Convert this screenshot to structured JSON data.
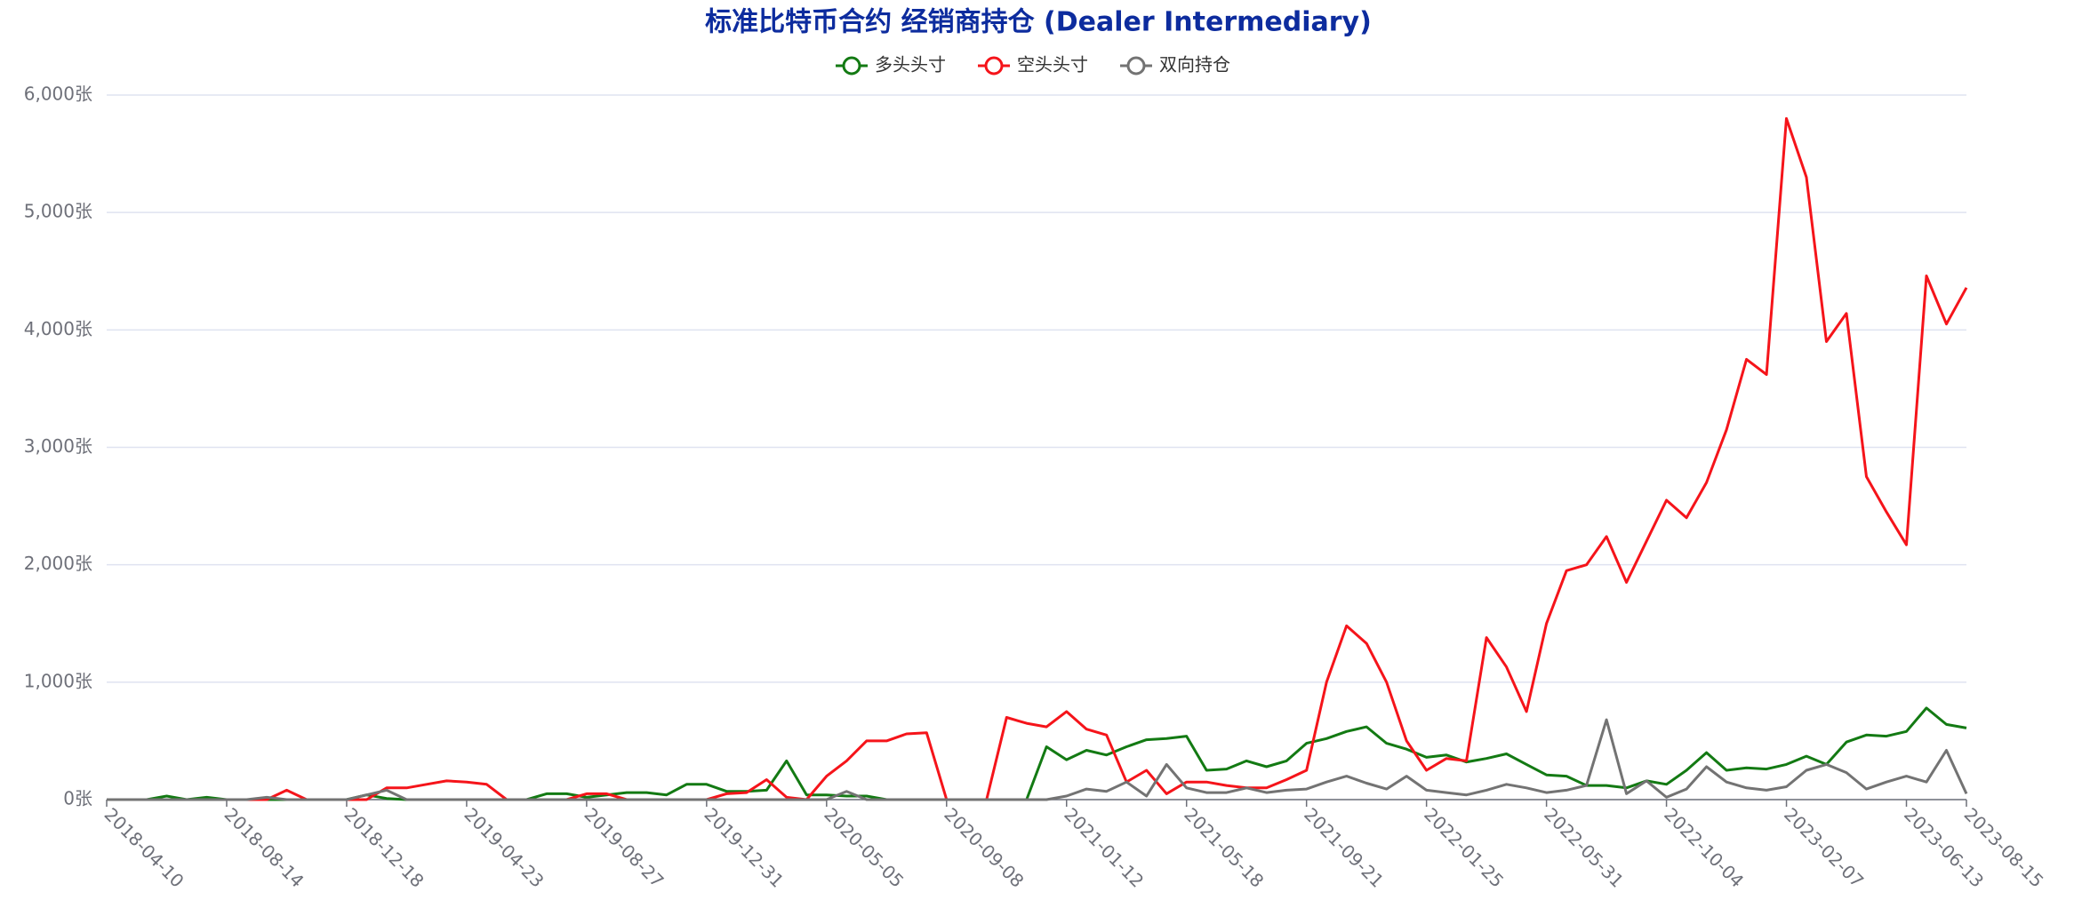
{
  "chart_data": {
    "type": "line",
    "title": "标准比特币合约 经销商持仓 (Dealer Intermediary)",
    "categories": [
      "2018-04-10",
      null,
      null,
      null,
      null,
      null,
      "2018-08-14",
      null,
      null,
      null,
      null,
      null,
      "2018-12-18",
      null,
      null,
      null,
      null,
      null,
      "2019-04-23",
      null,
      null,
      null,
      null,
      null,
      "2019-08-27",
      null,
      null,
      null,
      null,
      null,
      "2019-12-31",
      null,
      null,
      null,
      null,
      null,
      "2020-05-05",
      null,
      null,
      null,
      null,
      null,
      "2020-09-08",
      null,
      null,
      null,
      null,
      null,
      "2021-01-12",
      null,
      null,
      null,
      null,
      null,
      "2021-05-18",
      null,
      null,
      null,
      null,
      null,
      "2021-09-21",
      null,
      null,
      null,
      null,
      null,
      "2022-01-25",
      null,
      null,
      null,
      null,
      null,
      "2022-05-31",
      null,
      null,
      null,
      null,
      null,
      "2022-10-04",
      null,
      null,
      null,
      null,
      null,
      "2023-02-07",
      null,
      null,
      null,
      null,
      null,
      "2023-06-13",
      null,
      null,
      "2023-08-15"
    ],
    "series": [
      {
        "name": "多头头寸",
        "color": "#137a13",
        "values": [
          0,
          0,
          0,
          30,
          0,
          20,
          0,
          0,
          0,
          0,
          0,
          0,
          0,
          40,
          10,
          0,
          0,
          0,
          0,
          0,
          0,
          0,
          50,
          50,
          20,
          40,
          60,
          60,
          40,
          130,
          130,
          70,
          70,
          80,
          330,
          40,
          40,
          30,
          30,
          0,
          0,
          0,
          0,
          0,
          0,
          0,
          0,
          450,
          340,
          420,
          380,
          450,
          510,
          520,
          540,
          250,
          260,
          330,
          280,
          330,
          480,
          520,
          580,
          620,
          480,
          430,
          360,
          380,
          320,
          350,
          390,
          300,
          210,
          200,
          120,
          120,
          100,
          160,
          130,
          250,
          400,
          250,
          270,
          260,
          300,
          370,
          300,
          490,
          550,
          540,
          580,
          780,
          640,
          610
        ]
      },
      {
        "name": "空头头寸",
        "color": "#f5141a",
        "values": [
          0,
          0,
          0,
          0,
          0,
          0,
          0,
          0,
          0,
          80,
          0,
          0,
          0,
          0,
          100,
          100,
          130,
          160,
          150,
          130,
          0,
          0,
          0,
          0,
          50,
          50,
          0,
          0,
          0,
          0,
          0,
          50,
          60,
          170,
          20,
          0,
          200,
          330,
          500,
          500,
          560,
          570,
          0,
          0,
          0,
          700,
          650,
          620,
          750,
          600,
          550,
          150,
          250,
          50,
          150,
          150,
          120,
          100,
          100,
          170,
          250,
          1000,
          1480,
          1330,
          1000,
          500,
          250,
          350,
          330,
          1380,
          1130,
          750,
          1500,
          1950,
          2000,
          2240,
          1850,
          2200,
          2550,
          2400,
          2700,
          3150,
          3750,
          3620,
          5800,
          5300,
          3900,
          4140,
          2750,
          2450,
          2170,
          4460,
          4050,
          4360
        ]
      },
      {
        "name": "双向持仓",
        "color": "#737373",
        "values": [
          0,
          0,
          0,
          0,
          0,
          0,
          0,
          0,
          20,
          0,
          0,
          0,
          0,
          40,
          80,
          0,
          0,
          0,
          0,
          0,
          0,
          0,
          0,
          0,
          0,
          0,
          0,
          0,
          0,
          0,
          0,
          0,
          0,
          0,
          0,
          0,
          0,
          70,
          0,
          0,
          0,
          0,
          0,
          0,
          0,
          0,
          0,
          0,
          30,
          90,
          70,
          150,
          30,
          300,
          100,
          60,
          60,
          100,
          60,
          80,
          90,
          150,
          200,
          140,
          90,
          200,
          80,
          60,
          40,
          80,
          130,
          100,
          60,
          80,
          120,
          680,
          50,
          160,
          20,
          90,
          280,
          150,
          100,
          80,
          110,
          250,
          300,
          230,
          90,
          150,
          200,
          150,
          420,
          50
        ]
      }
    ],
    "ylim": [
      0,
      6000
    ],
    "yticks": [
      {
        "value": 0,
        "label": "0张"
      },
      {
        "value": 1000,
        "label": "1,000张"
      },
      {
        "value": 2000,
        "label": "2,000张"
      },
      {
        "value": 3000,
        "label": "3,000张"
      },
      {
        "value": 4000,
        "label": "4,000张"
      },
      {
        "value": 5000,
        "label": "5,000张"
      },
      {
        "value": 6000,
        "label": "6,000张"
      }
    ],
    "grid": true
  }
}
